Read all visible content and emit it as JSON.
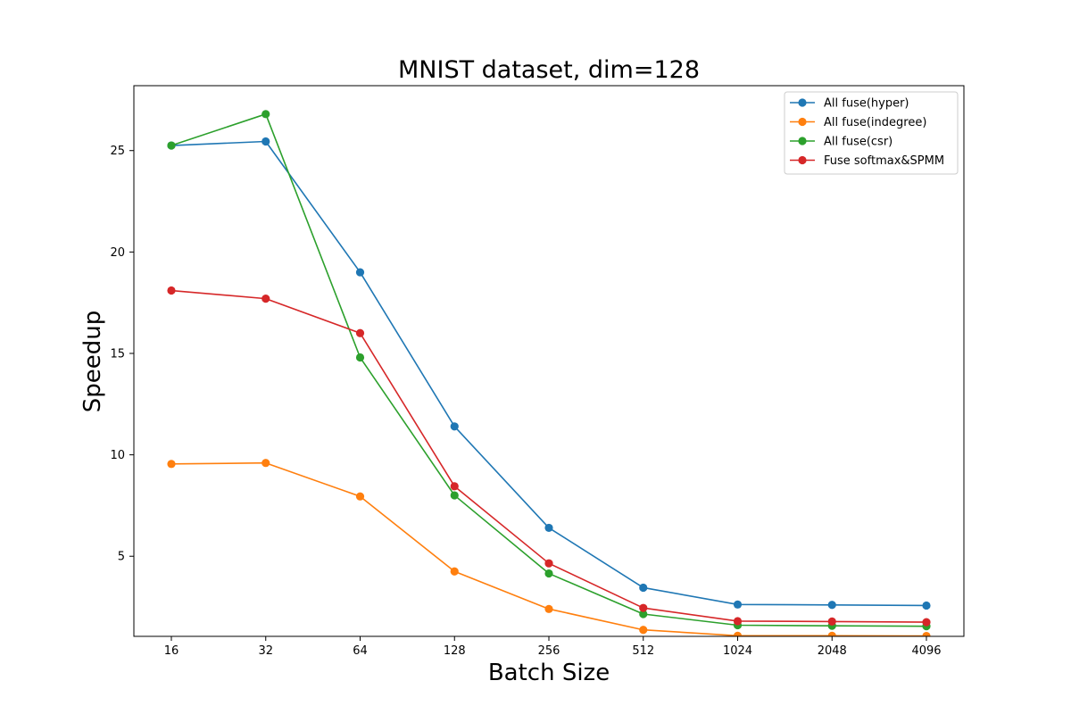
{
  "chart_data": {
    "type": "line",
    "title": "MNIST dataset, dim=128",
    "xlabel": "Batch Size",
    "ylabel": "Speedup",
    "categories": [
      "16",
      "32",
      "64",
      "128",
      "256",
      "512",
      "1024",
      "2048",
      "4096"
    ],
    "yticks": [
      5,
      10,
      15,
      20,
      25
    ],
    "ylim": [
      1.05,
      28.2
    ],
    "grid": false,
    "legend_position": "top-right",
    "marker": "circle",
    "series": [
      {
        "name": "All fuse(hyper)",
        "color": "#1f77b4",
        "values": [
          25.25,
          25.45,
          19.0,
          11.4,
          6.4,
          3.45,
          2.62,
          2.6,
          2.57
        ]
      },
      {
        "name": "All fuse(indegree)",
        "color": "#ff7f0e",
        "values": [
          9.55,
          9.6,
          7.95,
          4.25,
          2.4,
          1.37,
          1.08,
          1.08,
          1.07
        ]
      },
      {
        "name": "All fuse(csr)",
        "color": "#2ca02c",
        "values": [
          25.25,
          26.8,
          14.8,
          8.0,
          4.15,
          2.15,
          1.6,
          1.57,
          1.55
        ]
      },
      {
        "name": "Fuse softmax&SPMM",
        "color": "#d62728",
        "values": [
          18.1,
          17.7,
          16.0,
          8.45,
          4.65,
          2.45,
          1.8,
          1.78,
          1.75
        ]
      }
    ]
  }
}
